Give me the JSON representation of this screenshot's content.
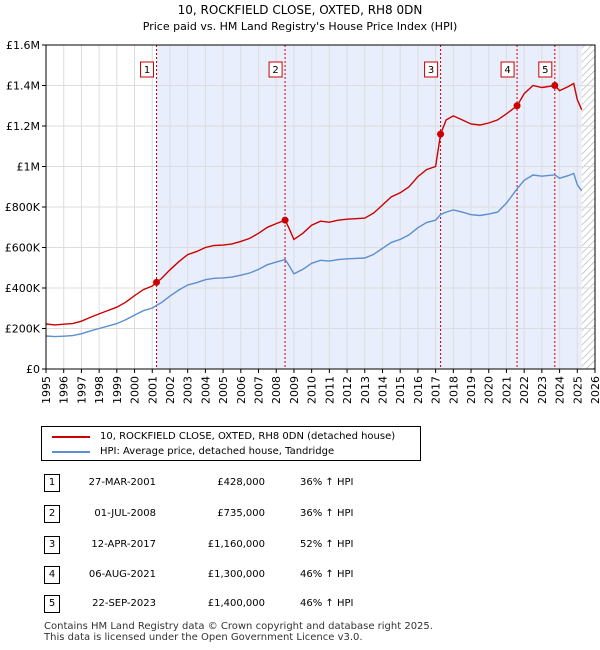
{
  "chart_data": {
    "type": "line",
    "title": "10, ROCKFIELD CLOSE, OXTED, RH8 0DN",
    "subtitle": "Price paid vs. HM Land Registry's House Price Index (HPI)",
    "xlim": [
      1995,
      2026
    ],
    "ylim": [
      0,
      1600000
    ],
    "y_ticks": [
      {
        "value": 0,
        "label": "£0"
      },
      {
        "value": 200000,
        "label": "£200K"
      },
      {
        "value": 400000,
        "label": "£400K"
      },
      {
        "value": 600000,
        "label": "£600K"
      },
      {
        "value": 800000,
        "label": "£800K"
      },
      {
        "value": 1000000,
        "label": "£1M"
      },
      {
        "value": 1200000,
        "label": "£1.2M"
      },
      {
        "value": 1400000,
        "label": "£1.4M"
      },
      {
        "value": 1600000,
        "label": "£1.6M"
      }
    ],
    "x_ticks": [
      "1995",
      "1996",
      "1997",
      "1998",
      "1999",
      "2000",
      "2001",
      "2002",
      "2003",
      "2004",
      "2005",
      "2006",
      "2007",
      "2008",
      "2009",
      "2010",
      "2011",
      "2012",
      "2013",
      "2014",
      "2015",
      "2016",
      "2017",
      "2018",
      "2019",
      "2020",
      "2021",
      "2022",
      "2023",
      "2024",
      "2025",
      "2026"
    ],
    "data_end": 2025.25,
    "series": [
      {
        "name": "10, ROCKFIELD CLOSE, OXTED, RH8 0DN (detached house)",
        "color": "#cc0000",
        "points": [
          [
            1995.0,
            222000
          ],
          [
            1995.5,
            218000
          ],
          [
            1996.0,
            221000
          ],
          [
            1996.5,
            224000
          ],
          [
            1997.0,
            236000
          ],
          [
            1997.5,
            255000
          ],
          [
            1998.0,
            272000
          ],
          [
            1998.5,
            289000
          ],
          [
            1999.0,
            305000
          ],
          [
            1999.5,
            330000
          ],
          [
            2000.0,
            362000
          ],
          [
            2000.5,
            392000
          ],
          [
            2001.0,
            410000
          ],
          [
            2001.24,
            428000
          ],
          [
            2001.5,
            445000
          ],
          [
            2002.0,
            490000
          ],
          [
            2002.5,
            530000
          ],
          [
            2003.0,
            565000
          ],
          [
            2003.5,
            580000
          ],
          [
            2004.0,
            600000
          ],
          [
            2004.5,
            610000
          ],
          [
            2005.0,
            612000
          ],
          [
            2005.5,
            618000
          ],
          [
            2006.0,
            630000
          ],
          [
            2006.5,
            645000
          ],
          [
            2007.0,
            670000
          ],
          [
            2007.5,
            700000
          ],
          [
            2008.0,
            718000
          ],
          [
            2008.5,
            735000
          ],
          [
            2008.7,
            700000
          ],
          [
            2009.0,
            640000
          ],
          [
            2009.5,
            670000
          ],
          [
            2010.0,
            710000
          ],
          [
            2010.5,
            730000
          ],
          [
            2011.0,
            725000
          ],
          [
            2011.5,
            735000
          ],
          [
            2012.0,
            740000
          ],
          [
            2012.5,
            742000
          ],
          [
            2013.0,
            745000
          ],
          [
            2013.5,
            770000
          ],
          [
            2014.0,
            810000
          ],
          [
            2014.5,
            850000
          ],
          [
            2015.0,
            870000
          ],
          [
            2015.5,
            900000
          ],
          [
            2016.0,
            950000
          ],
          [
            2016.5,
            985000
          ],
          [
            2017.0,
            1000000
          ],
          [
            2017.28,
            1160000
          ],
          [
            2017.6,
            1230000
          ],
          [
            2018.0,
            1250000
          ],
          [
            2018.5,
            1230000
          ],
          [
            2019.0,
            1210000
          ],
          [
            2019.5,
            1205000
          ],
          [
            2020.0,
            1215000
          ],
          [
            2020.5,
            1230000
          ],
          [
            2021.0,
            1260000
          ],
          [
            2021.6,
            1300000
          ],
          [
            2022.0,
            1360000
          ],
          [
            2022.5,
            1400000
          ],
          [
            2023.0,
            1390000
          ],
          [
            2023.73,
            1400000
          ],
          [
            2024.0,
            1375000
          ],
          [
            2024.5,
            1395000
          ],
          [
            2024.8,
            1410000
          ],
          [
            2025.0,
            1330000
          ],
          [
            2025.25,
            1280000
          ]
        ]
      },
      {
        "name": "HPI: Average price, detached house, Tandridge",
        "color": "#5b8fd0",
        "points": [
          [
            1995.0,
            163000
          ],
          [
            1995.5,
            160000
          ],
          [
            1996.0,
            162000
          ],
          [
            1996.5,
            165000
          ],
          [
            1997.0,
            174000
          ],
          [
            1997.5,
            188000
          ],
          [
            1998.0,
            200000
          ],
          [
            1998.5,
            212000
          ],
          [
            1999.0,
            224000
          ],
          [
            1999.5,
            243000
          ],
          [
            2000.0,
            266000
          ],
          [
            2000.5,
            288000
          ],
          [
            2001.0,
            301000
          ],
          [
            2001.24,
            314000
          ],
          [
            2001.5,
            327000
          ],
          [
            2002.0,
            360000
          ],
          [
            2002.5,
            390000
          ],
          [
            2003.0,
            415000
          ],
          [
            2003.5,
            426000
          ],
          [
            2004.0,
            441000
          ],
          [
            2004.5,
            448000
          ],
          [
            2005.0,
            450000
          ],
          [
            2005.5,
            454000
          ],
          [
            2006.0,
            463000
          ],
          [
            2006.5,
            474000
          ],
          [
            2007.0,
            492000
          ],
          [
            2007.5,
            515000
          ],
          [
            2008.0,
            528000
          ],
          [
            2008.5,
            540000
          ],
          [
            2008.7,
            515000
          ],
          [
            2009.0,
            470000
          ],
          [
            2009.5,
            492000
          ],
          [
            2010.0,
            522000
          ],
          [
            2010.5,
            537000
          ],
          [
            2011.0,
            533000
          ],
          [
            2011.5,
            540000
          ],
          [
            2012.0,
            544000
          ],
          [
            2012.5,
            546000
          ],
          [
            2013.0,
            548000
          ],
          [
            2013.5,
            566000
          ],
          [
            2014.0,
            596000
          ],
          [
            2014.5,
            625000
          ],
          [
            2015.0,
            640000
          ],
          [
            2015.5,
            662000
          ],
          [
            2016.0,
            698000
          ],
          [
            2016.5,
            724000
          ],
          [
            2017.0,
            735000
          ],
          [
            2017.28,
            763000
          ],
          [
            2017.6,
            775000
          ],
          [
            2018.0,
            785000
          ],
          [
            2018.5,
            775000
          ],
          [
            2019.0,
            762000
          ],
          [
            2019.5,
            758000
          ],
          [
            2020.0,
            765000
          ],
          [
            2020.5,
            775000
          ],
          [
            2021.0,
            820000
          ],
          [
            2021.6,
            890000
          ],
          [
            2022.0,
            932000
          ],
          [
            2022.5,
            958000
          ],
          [
            2023.0,
            952000
          ],
          [
            2023.73,
            959000
          ],
          [
            2024.0,
            942000
          ],
          [
            2024.5,
            955000
          ],
          [
            2024.8,
            966000
          ],
          [
            2025.0,
            910000
          ],
          [
            2025.25,
            880000
          ]
        ]
      }
    ],
    "sales": [
      {
        "num": "1",
        "year": 2001.24,
        "price": 428000,
        "date": "27-MAR-2001",
        "price_label": "£428,000",
        "hpi": "36% ↑ HPI"
      },
      {
        "num": "2",
        "year": 2008.5,
        "price": 735000,
        "date": "01-JUL-2008",
        "price_label": "£735,000",
        "hpi": "36% ↑ HPI"
      },
      {
        "num": "3",
        "year": 2017.28,
        "price": 1160000,
        "date": "12-APR-2017",
        "price_label": "£1,160,000",
        "hpi": "52% ↑ HPI"
      },
      {
        "num": "4",
        "year": 2021.6,
        "price": 1300000,
        "date": "06-AUG-2021",
        "price_label": "£1,300,000",
        "hpi": "46% ↑ HPI"
      },
      {
        "num": "5",
        "year": 2023.73,
        "price": 1400000,
        "date": "22-SEP-2023",
        "price_label": "£1,400,000",
        "hpi": "46% ↑ HPI"
      }
    ]
  },
  "legend": {
    "property_label": "10, ROCKFIELD CLOSE, OXTED, RH8 0DN (detached house)",
    "hpi_label": "HPI: Average price, detached house, Tandridge"
  },
  "sales_table": [
    {
      "num": "1",
      "date": "27-MAR-2001",
      "price": "£428,000",
      "hpi": "36% ↑ HPI"
    },
    {
      "num": "2",
      "date": "01-JUL-2008",
      "price": "£735,000",
      "hpi": "36% ↑ HPI"
    },
    {
      "num": "3",
      "date": "12-APR-2017",
      "price": "£1,160,000",
      "hpi": "52% ↑ HPI"
    },
    {
      "num": "4",
      "date": "06-AUG-2021",
      "price": "£1,300,000",
      "hpi": "46% ↑ HPI"
    },
    {
      "num": "5",
      "date": "22-SEP-2023",
      "price": "£1,400,000",
      "hpi": "46% ↑ HPI"
    }
  ],
  "footer": {
    "line1": "Contains HM Land Registry data © Crown copyright and database right 2025.",
    "line2": "This data is licensed under the Open Government Licence v3.0."
  }
}
